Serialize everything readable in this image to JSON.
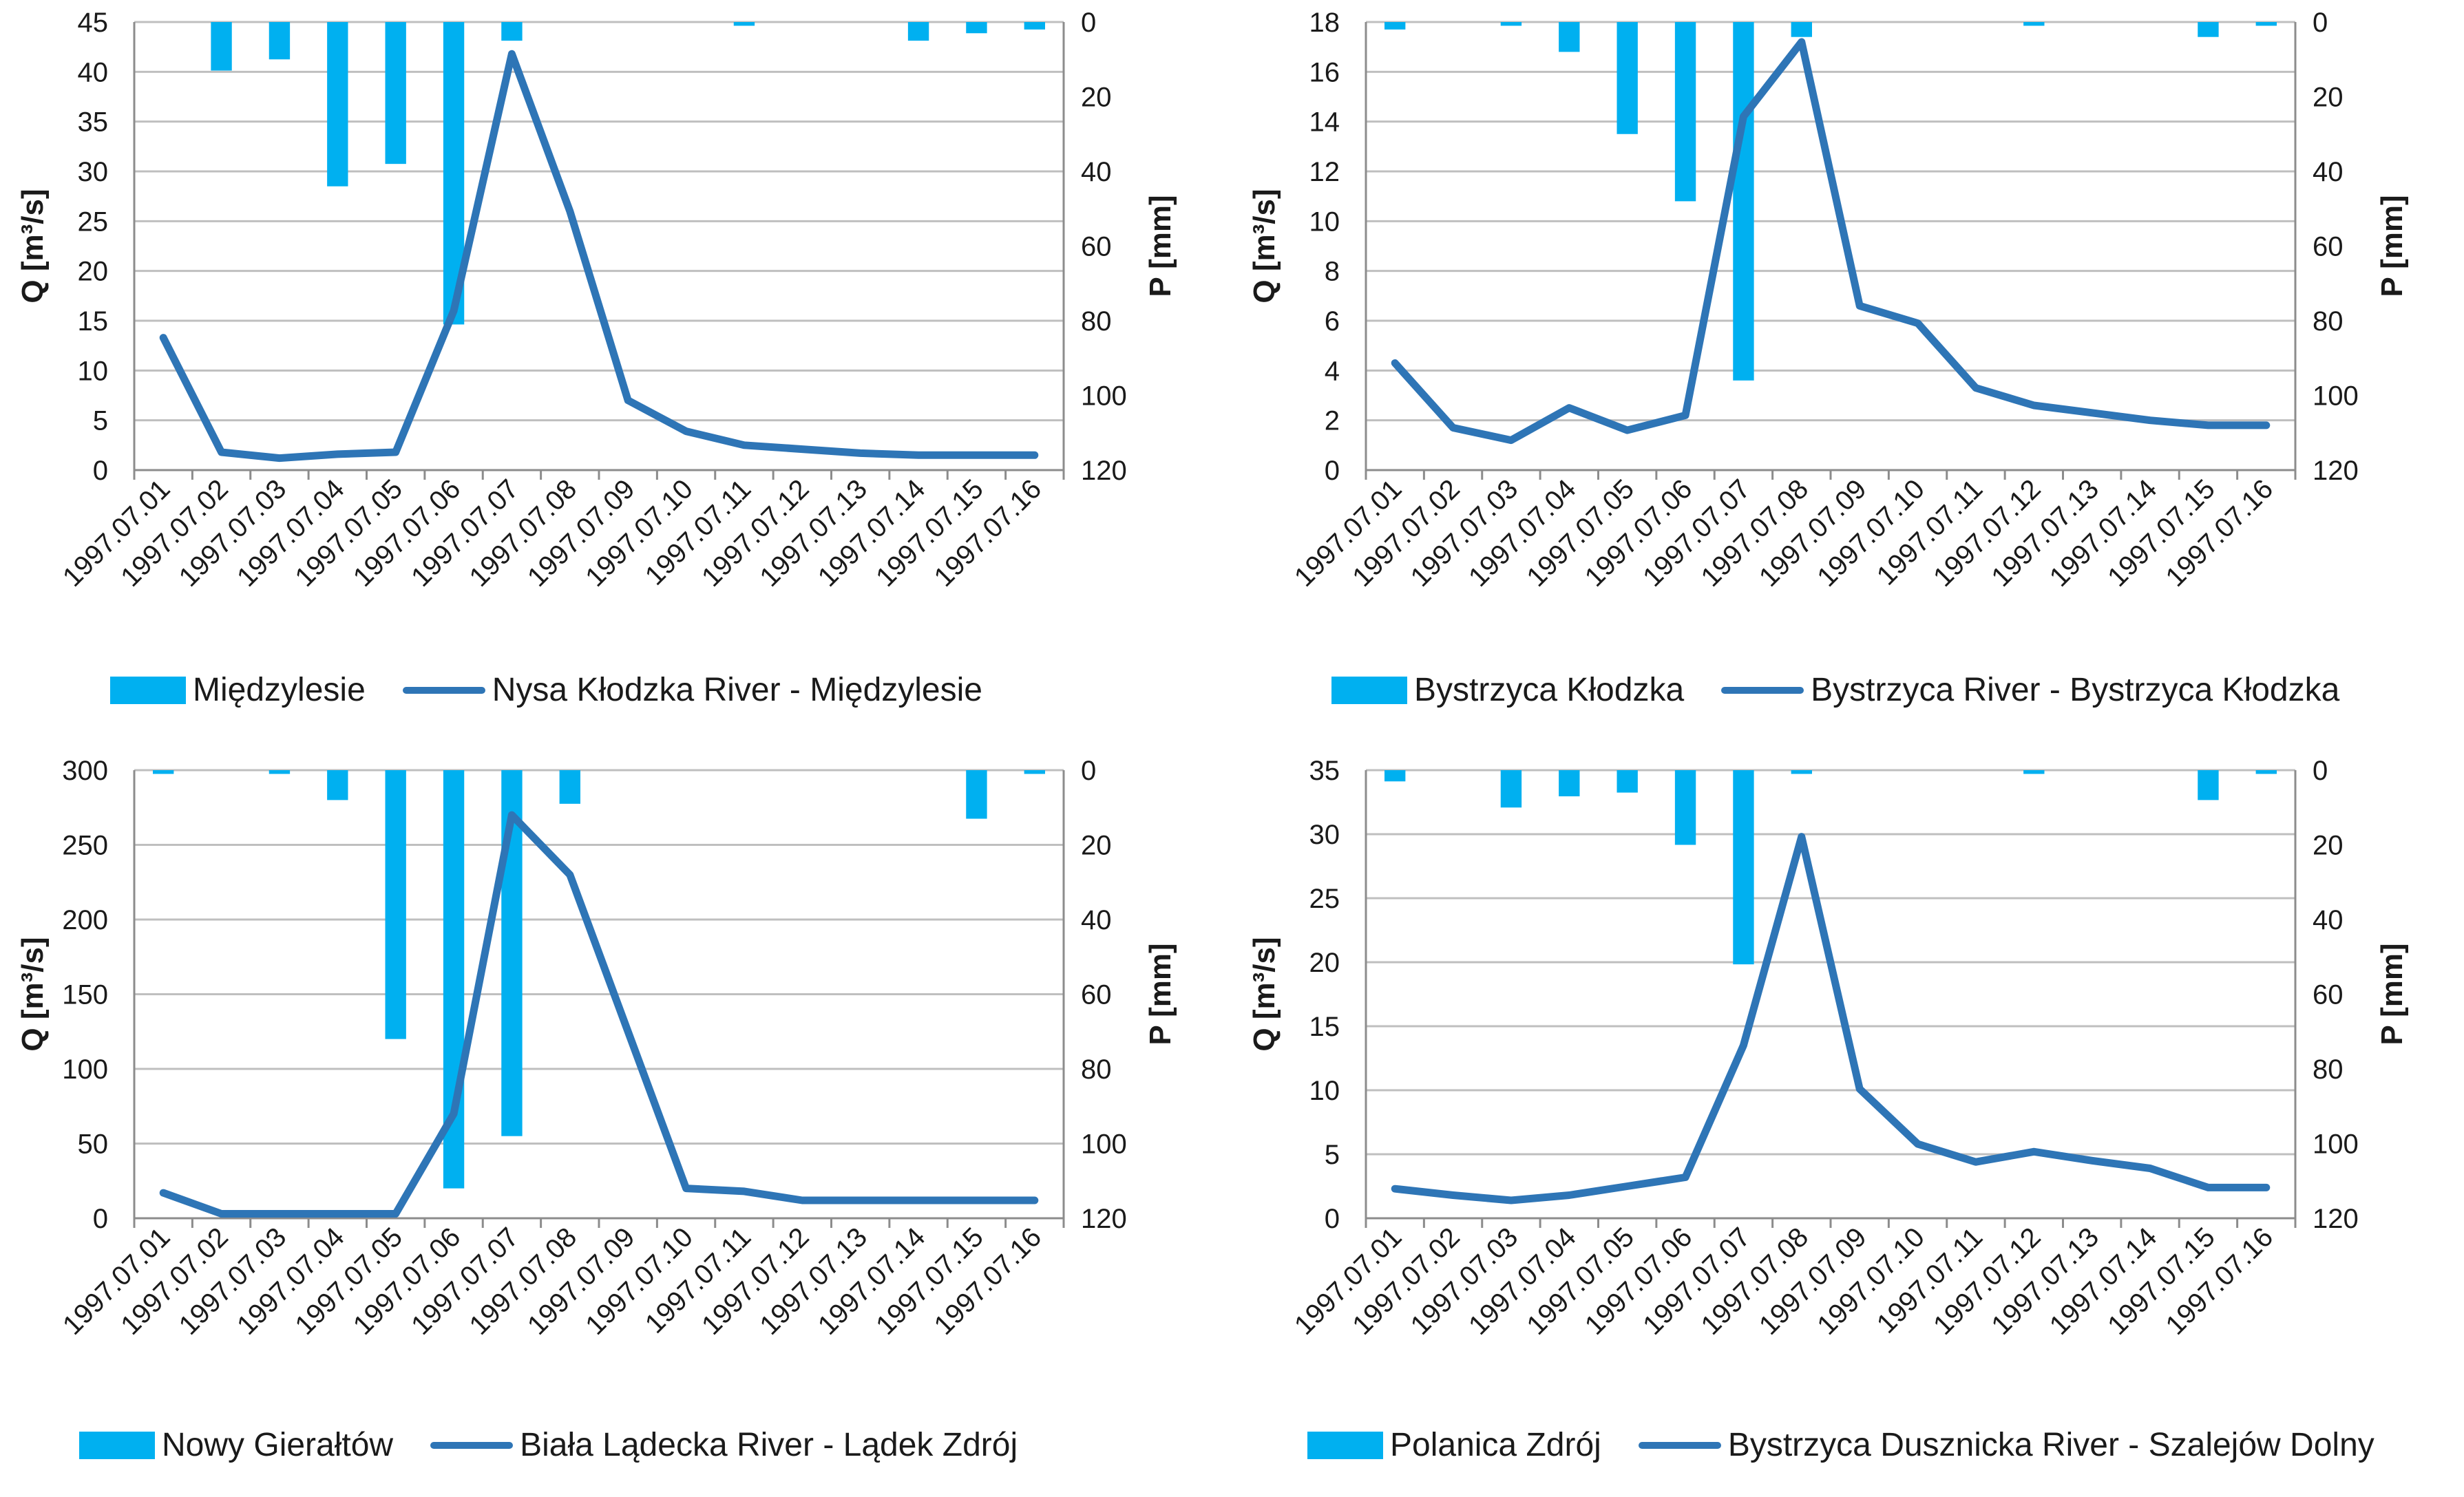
{
  "chart_data": [
    {
      "type": "bar+line",
      "categories": [
        "1997.07.01",
        "1997.07.02",
        "1997.07.03",
        "1997.07.04",
        "1997.07.05",
        "1997.07.06",
        "1997.07.07",
        "1997.07.08",
        "1997.07.09",
        "1997.07.10",
        "1997.07.11",
        "1997.07.12",
        "1997.07.13",
        "1997.07.14",
        "1997.07.15",
        "1997.07.16"
      ],
      "ylabel": "Q [m³/s]",
      "y2label": "P [mm]",
      "ylim": [
        0,
        45
      ],
      "yticks": [
        0,
        5,
        10,
        15,
        20,
        25,
        30,
        35,
        40,
        45
      ],
      "y2lim": [
        0,
        120
      ],
      "y2ticks": [
        0,
        20,
        40,
        60,
        80,
        100,
        120
      ],
      "series": [
        {
          "name": "Międzylesie",
          "kind": "bar",
          "axis": "P",
          "color": "#00b0f0",
          "values": [
            0,
            13,
            10,
            44,
            38,
            81,
            5,
            0,
            0,
            0,
            1,
            0,
            0,
            5,
            3,
            2
          ]
        },
        {
          "name": "Nysa Kłodzka River - Międzylesie",
          "kind": "line",
          "axis": "Q",
          "color": "#2e75b6",
          "values": [
            13.3,
            1.8,
            1.2,
            1.6,
            1.8,
            16.0,
            41.8,
            26.0,
            7.0,
            3.9,
            2.5,
            2.1,
            1.7,
            1.5,
            1.5,
            1.5
          ]
        }
      ],
      "legend": [
        "Międzylesie",
        "Nysa Kłodzka River - Międzylesie"
      ]
    },
    {
      "type": "bar+line",
      "categories": [
        "1997.07.01",
        "1997.07.02",
        "1997.07.03",
        "1997.07.04",
        "1997.07.05",
        "1997.07.06",
        "1997.07.07",
        "1997.07.08",
        "1997.07.09",
        "1997.07.10",
        "1997.07.11",
        "1997.07.12",
        "1997.07.13",
        "1997.07.14",
        "1997.07.15",
        "1997.07.16"
      ],
      "ylabel": "Q [m³/s]",
      "y2label": "P [mm]",
      "ylim": [
        0,
        18
      ],
      "yticks": [
        0,
        2,
        4,
        6,
        8,
        10,
        12,
        14,
        16,
        18
      ],
      "y2lim": [
        0,
        120
      ],
      "y2ticks": [
        0,
        20,
        40,
        60,
        80,
        100,
        120
      ],
      "series": [
        {
          "name": "Bystrzyca Kłodzka",
          "kind": "bar",
          "axis": "P",
          "color": "#00b0f0",
          "values": [
            2,
            0,
            1,
            8,
            30,
            48,
            96,
            4,
            0,
            0,
            0,
            1,
            0,
            0,
            4,
            1
          ]
        },
        {
          "name": "Bystrzyca River - Bystrzyca Kłodzka",
          "kind": "line",
          "axis": "Q",
          "color": "#2e75b6",
          "values": [
            4.3,
            1.7,
            1.2,
            2.5,
            1.6,
            2.2,
            14.2,
            17.2,
            6.6,
            5.9,
            3.3,
            2.6,
            2.3,
            2.0,
            1.8,
            1.8
          ]
        }
      ],
      "legend": [
        "Bystrzyca Kłodzka",
        "Bystrzyca River - Bystrzyca Kłodzka"
      ]
    },
    {
      "type": "bar+line",
      "categories": [
        "1997.07.01",
        "1997.07.02",
        "1997.07.03",
        "1997.07.04",
        "1997.07.05",
        "1997.07.06",
        "1997.07.07",
        "1997.07.08",
        "1997.07.09",
        "1997.07.10",
        "1997.07.11",
        "1997.07.12",
        "1997.07.13",
        "1997.07.14",
        "1997.07.15",
        "1997.07.16"
      ],
      "ylabel": "Q [m³/s]",
      "y2label": "P [mm]",
      "ylim": [
        0,
        300
      ],
      "yticks": [
        0,
        50,
        100,
        150,
        200,
        250,
        300
      ],
      "y2lim": [
        0,
        120
      ],
      "y2ticks": [
        0,
        20,
        40,
        60,
        80,
        100,
        120
      ],
      "series": [
        {
          "name": "Nowy Gierałtów",
          "kind": "bar",
          "axis": "P",
          "color": "#00b0f0",
          "values": [
            1,
            0,
            1,
            8,
            72,
            112,
            98,
            9,
            0,
            0,
            0,
            0,
            0,
            0,
            13,
            1
          ]
        },
        {
          "name": "Biała Lądecka River - Lądek Zdrój",
          "kind": "line",
          "axis": "Q",
          "color": "#2e75b6",
          "values": [
            17,
            3,
            3,
            3,
            3,
            70,
            270,
            230,
            125,
            20,
            18,
            12,
            12,
            12,
            12,
            12
          ]
        }
      ],
      "legend": [
        "Nowy Gierałtów",
        "Biała Lądecka River - Lądek Zdrój"
      ]
    },
    {
      "type": "bar+line",
      "categories": [
        "1997.07.01",
        "1997.07.02",
        "1997.07.03",
        "1997.07.04",
        "1997.07.05",
        "1997.07.06",
        "1997.07.07",
        "1997.07.08",
        "1997.07.09",
        "1997.07.10",
        "1997.07.11",
        "1997.07.12",
        "1997.07.13",
        "1997.07.14",
        "1997.07.15",
        "1997.07.16"
      ],
      "ylabel": "Q [m³/s]",
      "y2label": "P [mm]",
      "ylim": [
        0,
        35
      ],
      "yticks": [
        0,
        5,
        10,
        15,
        20,
        25,
        30,
        35
      ],
      "y2lim": [
        0,
        120
      ],
      "y2ticks": [
        0,
        20,
        40,
        60,
        80,
        100,
        120
      ],
      "series": [
        {
          "name": "Polanica Zdrój",
          "kind": "bar",
          "axis": "P",
          "color": "#00b0f0",
          "values": [
            3,
            0,
            10,
            7,
            6,
            20,
            52,
            1,
            0,
            0,
            0,
            1,
            0,
            0,
            8,
            1
          ]
        },
        {
          "name": "Bystrzyca Dusznicka River - Szalejów Dolny",
          "kind": "line",
          "axis": "Q",
          "color": "#2e75b6",
          "values": [
            2.3,
            1.8,
            1.4,
            1.8,
            2.5,
            3.2,
            13.5,
            29.8,
            10.1,
            5.8,
            4.4,
            5.2,
            4.5,
            3.9,
            2.4,
            2.4
          ]
        }
      ],
      "legend": [
        "Polanica Zdrój",
        "Bystrzyca Dusznicka River - Szalejów Dolny"
      ]
    }
  ]
}
